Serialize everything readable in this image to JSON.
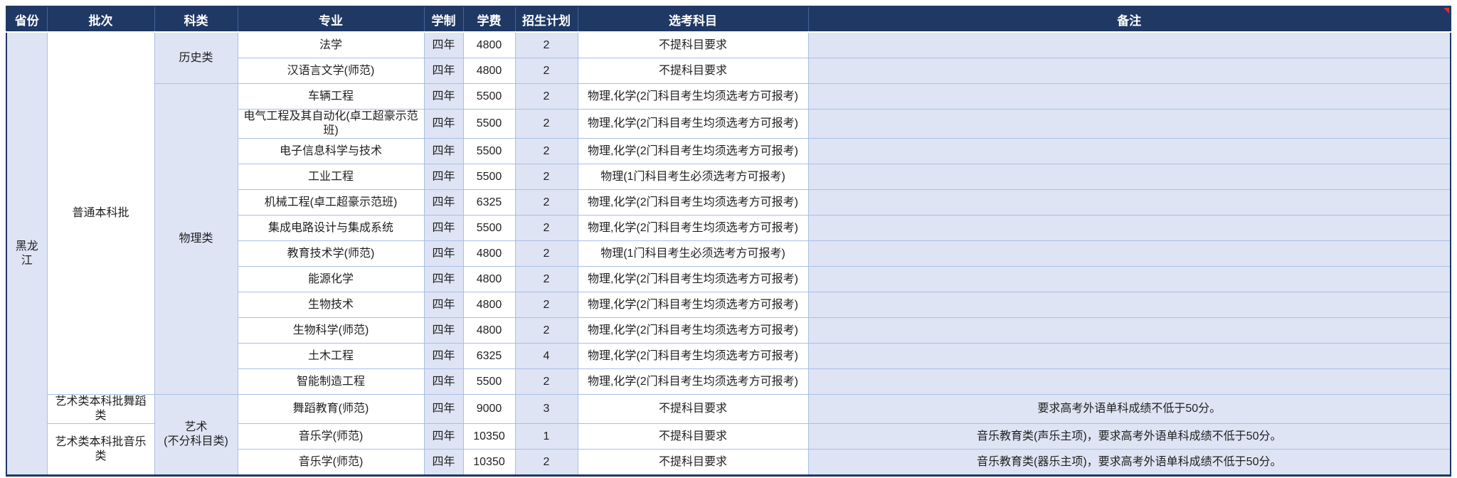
{
  "colors": {
    "header_bg": "#1F3864",
    "header_text": "#FFFFFF",
    "shaded_cell_bg": "#DEE4F4",
    "body_border": "#A9BFE4",
    "outer_border": "#1F3864",
    "comment_marker_red": "#D13438"
  },
  "table": {
    "headers": [
      "省份",
      "批次",
      "科类",
      "专业",
      "学制",
      "学费",
      "招生计划",
      "选考科目",
      "备注"
    ],
    "province": {
      "label": "黑龙江",
      "rowspan": 17
    },
    "batches": [
      {
        "label": "普通本科批",
        "rowspan": 14
      },
      {
        "label": "艺术类本科批舞蹈类",
        "rowspan": 1
      },
      {
        "label": "艺术类本科批音乐类",
        "rowspan": 2
      }
    ],
    "categories": [
      {
        "label": "历史类",
        "rowspan": 2
      },
      {
        "label": "物理类",
        "rowspan": 12
      },
      {
        "label": "艺术\n(不分科目类)",
        "rowspan": 3
      }
    ],
    "rows": [
      {
        "major": "法学",
        "duration": "四年",
        "fee": "4800",
        "plan": "2",
        "subjects": "不提科目要求",
        "note": ""
      },
      {
        "major": "汉语言文学(师范)",
        "duration": "四年",
        "fee": "4800",
        "plan": "2",
        "subjects": "不提科目要求",
        "note": ""
      },
      {
        "major": "车辆工程",
        "duration": "四年",
        "fee": "5500",
        "plan": "2",
        "subjects": "物理,化学(2门科目考生均须选考方可报考)",
        "note": ""
      },
      {
        "major": "电气工程及其自动化(卓工超豪示范班)",
        "duration": "四年",
        "fee": "5500",
        "plan": "2",
        "subjects": "物理,化学(2门科目考生均须选考方可报考)",
        "note": ""
      },
      {
        "major": "电子信息科学与技术",
        "duration": "四年",
        "fee": "5500",
        "plan": "2",
        "subjects": "物理,化学(2门科目考生均须选考方可报考)",
        "note": ""
      },
      {
        "major": "工业工程",
        "duration": "四年",
        "fee": "5500",
        "plan": "2",
        "subjects": "物理(1门科目考生必须选考方可报考)",
        "note": ""
      },
      {
        "major": "机械工程(卓工超豪示范班)",
        "duration": "四年",
        "fee": "6325",
        "plan": "2",
        "subjects": "物理,化学(2门科目考生均须选考方可报考)",
        "note": ""
      },
      {
        "major": "集成电路设计与集成系统",
        "duration": "四年",
        "fee": "5500",
        "plan": "2",
        "subjects": "物理,化学(2门科目考生均须选考方可报考)",
        "note": ""
      },
      {
        "major": "教育技术学(师范)",
        "duration": "四年",
        "fee": "4800",
        "plan": "2",
        "subjects": "物理(1门科目考生必须选考方可报考)",
        "note": ""
      },
      {
        "major": "能源化学",
        "duration": "四年",
        "fee": "4800",
        "plan": "2",
        "subjects": "物理,化学(2门科目考生均须选考方可报考)",
        "note": ""
      },
      {
        "major": "生物技术",
        "duration": "四年",
        "fee": "4800",
        "plan": "2",
        "subjects": "物理,化学(2门科目考生均须选考方可报考)",
        "note": ""
      },
      {
        "major": "生物科学(师范)",
        "duration": "四年",
        "fee": "4800",
        "plan": "2",
        "subjects": "物理,化学(2门科目考生均须选考方可报考)",
        "note": ""
      },
      {
        "major": "土木工程",
        "duration": "四年",
        "fee": "6325",
        "plan": "4",
        "subjects": "物理,化学(2门科目考生均须选考方可报考)",
        "note": ""
      },
      {
        "major": "智能制造工程",
        "duration": "四年",
        "fee": "5500",
        "plan": "2",
        "subjects": "物理,化学(2门科目考生均须选考方可报考)",
        "note": ""
      },
      {
        "major": "舞蹈教育(师范)",
        "duration": "四年",
        "fee": "9000",
        "plan": "3",
        "subjects": "不提科目要求",
        "note": "要求高考外语单科成绩不低于50分。"
      },
      {
        "major": "音乐学(师范)",
        "duration": "四年",
        "fee": "10350",
        "plan": "1",
        "subjects": "不提科目要求",
        "note": "音乐教育类(声乐主项)，要求高考外语单科成绩不低于50分。"
      },
      {
        "major": "音乐学(师范)",
        "duration": "四年",
        "fee": "10350",
        "plan": "2",
        "subjects": "不提科目要求",
        "note": "音乐教育类(器乐主项)，要求高考外语单科成绩不低于50分。"
      }
    ]
  }
}
